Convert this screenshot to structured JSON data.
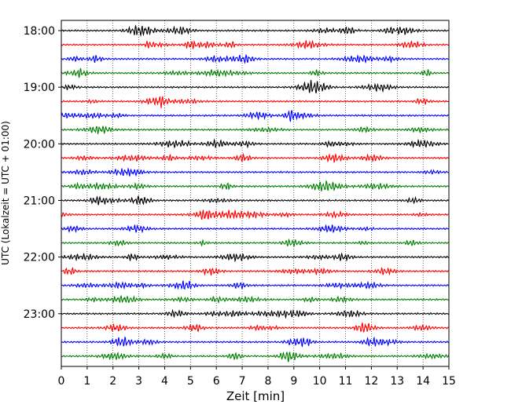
{
  "chart_data": {
    "type": "line",
    "title": "",
    "xlabel": "Zeit  [min]",
    "ylabel": "UTC (Lokalzeit = UTC + 01:00)",
    "xlim": [
      0,
      15
    ],
    "x_ticks": [
      0,
      1,
      2,
      3,
      4,
      5,
      6,
      7,
      8,
      9,
      10,
      11,
      12,
      13,
      14,
      15
    ],
    "y_ticks": [
      "18:00",
      "19:00",
      "20:00",
      "21:00",
      "22:00",
      "23:00"
    ],
    "trace_interval_min": 15,
    "trace_start": "18:00",
    "trace_count": 24,
    "trace_colors": [
      "#000000",
      "#ff0000",
      "#0000ff",
      "#008000"
    ],
    "grid": {
      "x": true,
      "y": false,
      "style": "dotted"
    }
  }
}
